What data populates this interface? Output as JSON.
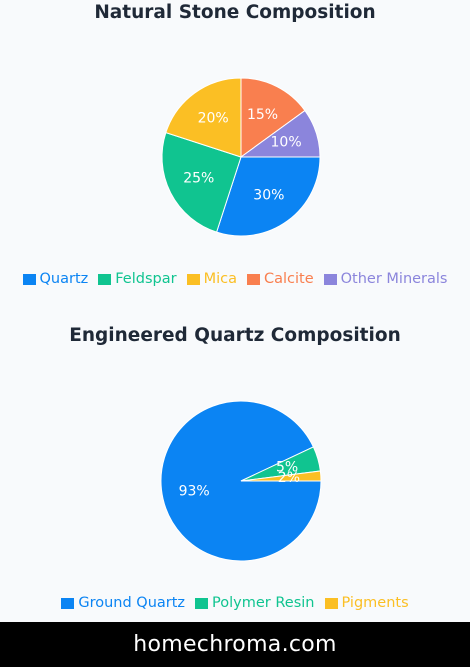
{
  "chart_data": [
    {
      "type": "pie",
      "title": "Natural Stone Composition",
      "categories": [
        "Quartz",
        "Feldspar",
        "Mica",
        "Calcite",
        "Other Minerals"
      ],
      "values": [
        30,
        25,
        20,
        15,
        10
      ],
      "labels": [
        "30%",
        "25%",
        "20%",
        "15%",
        "10%"
      ],
      "colors": [
        "#0b84f3",
        "#10c490",
        "#fbbf24",
        "#f97f4f",
        "#8b85dc"
      ],
      "legend_position": "bottom"
    },
    {
      "type": "pie",
      "title": "Engineered Quartz Composition",
      "categories": [
        "Ground Quartz",
        "Polymer Resin",
        "Pigments"
      ],
      "values": [
        93,
        5,
        2
      ],
      "labels": [
        "93%",
        "5%",
        "2%"
      ],
      "colors": [
        "#0b84f3",
        "#10c490",
        "#fbbf24"
      ],
      "legend_position": "bottom"
    }
  ],
  "footer": {
    "text": "homechroma.com"
  }
}
